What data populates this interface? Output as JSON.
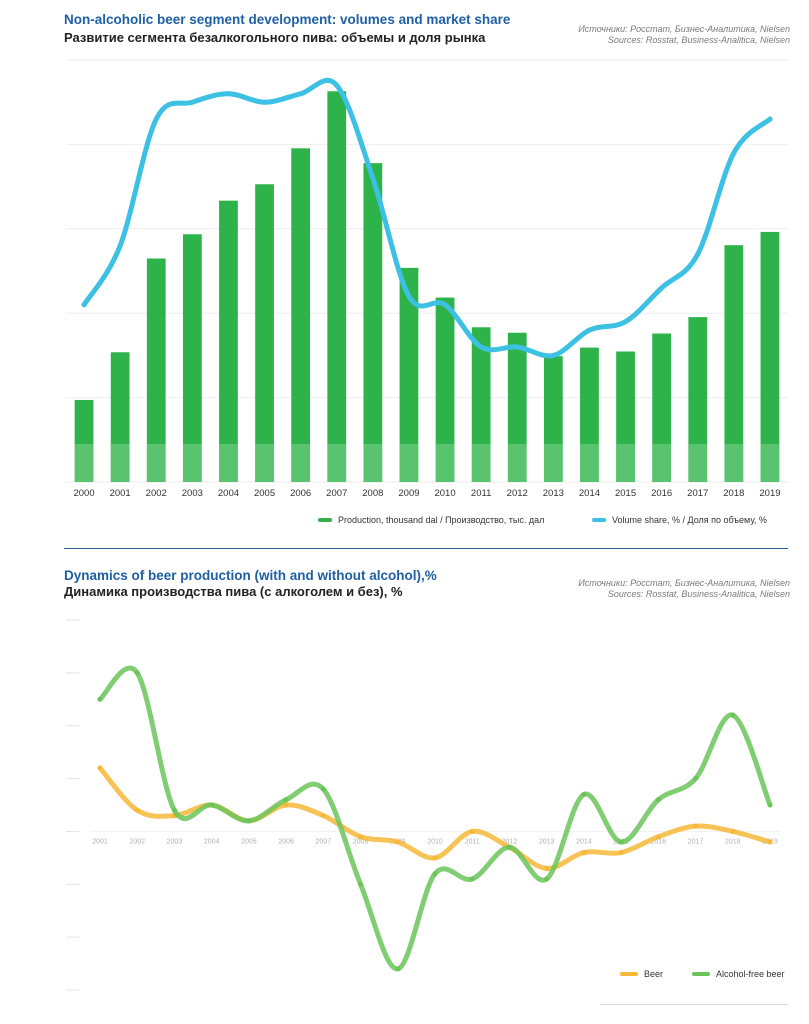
{
  "chart_data": [
    {
      "type": "bar",
      "title": "Non-alcoholic beer segment development: volumes and market share",
      "subtitle": "Развитие сегмента безалкогольного пива: объемы и доля рынка",
      "sources": [
        "Источники: Росстат, Бизнес-Аналитика, Nielsen",
        "Sources: Rosstat, Business-Analitica, Nielsen"
      ],
      "categories": [
        "2000",
        "2001",
        "2002",
        "2003",
        "2004",
        "2005",
        "2006",
        "2007",
        "2008",
        "2009",
        "2010",
        "2011",
        "2012",
        "2013",
        "2014",
        "2015",
        "2016",
        "2017",
        "2018",
        "2019"
      ],
      "series": [
        {
          "name": "Production, thousand dal  /  Производство, тыс. дал",
          "type": "bar",
          "color": "#2db34a",
          "values": [
            1050,
            1660,
            2860,
            3170,
            3600,
            3810,
            4270,
            5000,
            4080,
            2740,
            2360,
            1980,
            1910,
            1610,
            1720,
            1670,
            1900,
            2110,
            3030,
            3200
          ]
        },
        {
          "name": "Volume share, %  /  Доля по объему, %",
          "type": "line",
          "color": "#3cc0e4",
          "values": [
            0.31,
            0.38,
            0.53,
            0.55,
            0.56,
            0.55,
            0.56,
            0.57,
            0.46,
            0.32,
            0.31,
            0.26,
            0.26,
            0.25,
            0.28,
            0.29,
            0.33,
            0.37,
            0.49,
            0.53
          ]
        }
      ],
      "grid": true,
      "legend": "bottom-right"
    },
    {
      "type": "line",
      "title": "Dynamics of beer production (with and without alcohol),%",
      "subtitle": "Динамика производства пива (с алкоголем и без), %",
      "sources": [
        "Источники: Росстат, Бизнес-Аналитика, Nielsen",
        "Sources: Rosstat, Business-Analitica, Nielsen"
      ],
      "x": [
        "2001",
        "2002",
        "2003",
        "2004",
        "2005",
        "2006",
        "2007",
        "2008",
        "2009",
        "2010",
        "2011",
        "2012",
        "2013",
        "2014",
        "2015",
        "2016",
        "2017",
        "2018",
        "2019"
      ],
      "ylim": [
        -30,
        40
      ],
      "series": [
        {
          "name": "Beer",
          "color": "#f7b838",
          "values": [
            12,
            4,
            3,
            5,
            2,
            5,
            3,
            -1,
            -2,
            -5,
            0,
            -3,
            -7,
            -4,
            -4,
            -1,
            1,
            0,
            -2
          ]
        },
        {
          "name": "Alcohol-free beer",
          "color": "#6bc45a",
          "values": [
            25,
            30,
            4,
            5,
            2,
            6,
            8,
            -10,
            -26,
            -8,
            -9,
            -3,
            -9,
            7,
            -2,
            6,
            10,
            22,
            5
          ]
        }
      ],
      "grid": false,
      "legend": "bottom-right"
    }
  ]
}
